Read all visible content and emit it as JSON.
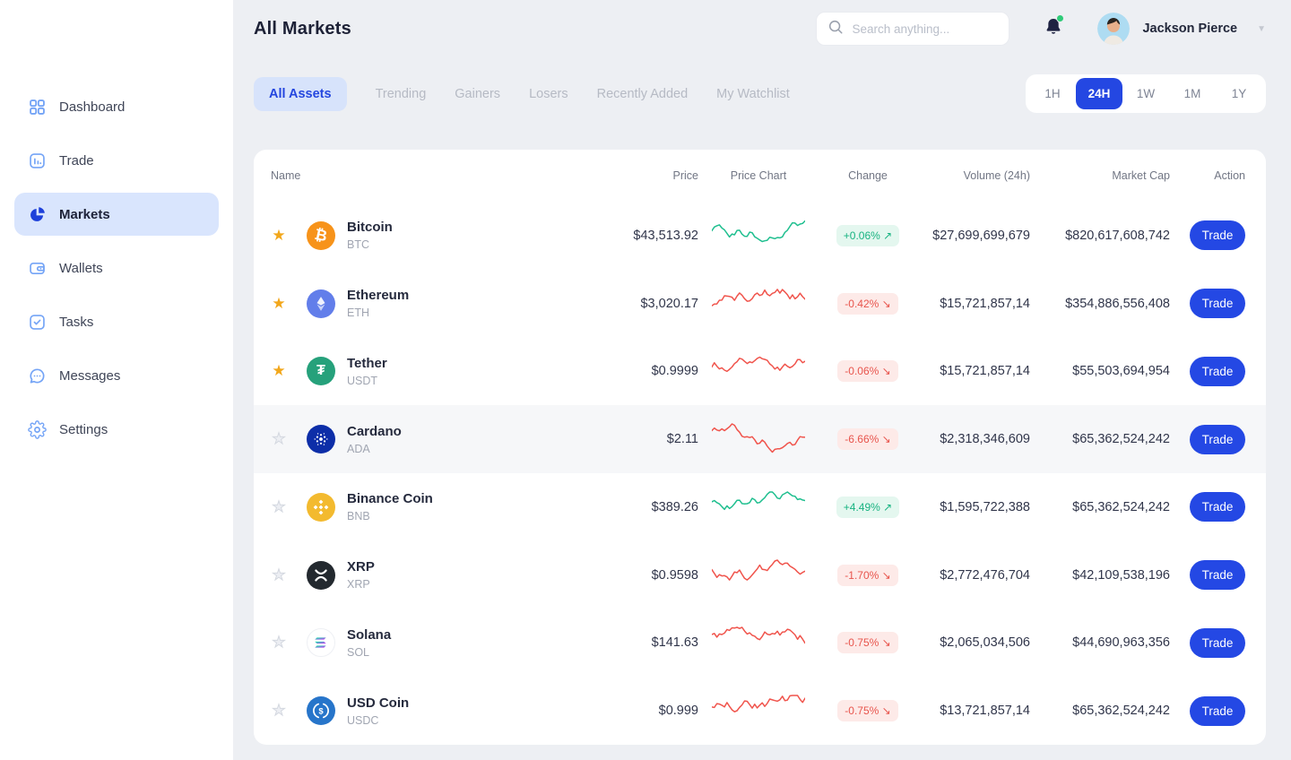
{
  "header": {
    "title": "All Markets",
    "search_placeholder": "Search anything...",
    "user_name": "Jackson Pierce"
  },
  "sidebar": {
    "items": [
      {
        "label": "Dashboard",
        "icon": "dashboard-grid-icon",
        "active": false
      },
      {
        "label": "Trade",
        "icon": "trade-chart-icon",
        "active": false
      },
      {
        "label": "Markets",
        "icon": "markets-pie-icon",
        "active": true
      },
      {
        "label": "Wallets",
        "icon": "wallet-icon",
        "active": false
      },
      {
        "label": "Tasks",
        "icon": "tasks-check-icon",
        "active": false
      },
      {
        "label": "Messages",
        "icon": "messages-chat-icon",
        "active": false
      },
      {
        "label": "Settings",
        "icon": "settings-gear-icon",
        "active": false
      }
    ]
  },
  "tabs": [
    {
      "label": "All Assets",
      "active": true
    },
    {
      "label": "Trending",
      "active": false
    },
    {
      "label": "Gainers",
      "active": false
    },
    {
      "label": "Losers",
      "active": false
    },
    {
      "label": "Recently Added",
      "active": false
    },
    {
      "label": "My Watchlist",
      "active": false
    }
  ],
  "time_ranges": [
    {
      "label": "1H",
      "active": false
    },
    {
      "label": "24H",
      "active": true
    },
    {
      "label": "1W",
      "active": false
    },
    {
      "label": "1M",
      "active": false
    },
    {
      "label": "1Y",
      "active": false
    }
  ],
  "table": {
    "columns": [
      "Name",
      "Price",
      "Price Chart",
      "Change",
      "Volume (24h)",
      "Market Cap",
      "Action"
    ],
    "rows": [
      {
        "name": "Bitcoin",
        "symbol": "BTC",
        "starred": true,
        "highlighted": false,
        "price": "$43,513.92",
        "trend": "up",
        "change": "+0.06%",
        "volume": "$27,699,699,679",
        "market_cap": "$820,617,608,742",
        "action": "Trade",
        "icon": "btc-icon",
        "icon_bg": "#f7931a"
      },
      {
        "name": "Ethereum",
        "symbol": "ETH",
        "starred": true,
        "highlighted": false,
        "price": "$3,020.17",
        "trend": "down",
        "change": "-0.42%",
        "volume": "$15,721,857,14",
        "market_cap": "$354,886,556,408",
        "action": "Trade",
        "icon": "eth-icon",
        "icon_bg": "#627eea"
      },
      {
        "name": "Tether",
        "symbol": "USDT",
        "starred": true,
        "highlighted": false,
        "price": "$0.9999",
        "trend": "down",
        "change": "-0.06%",
        "volume": "$15,721,857,14",
        "market_cap": "$55,503,694,954",
        "action": "Trade",
        "icon": "usdt-icon",
        "icon_bg": "#26a17b"
      },
      {
        "name": "Cardano",
        "symbol": "ADA",
        "starred": false,
        "highlighted": true,
        "price": "$2.11",
        "trend": "down",
        "change": "-6.66%",
        "volume": "$2,318,346,609",
        "market_cap": "$65,362,524,242",
        "action": "Trade",
        "icon": "ada-icon",
        "icon_bg": "#0d2ea8"
      },
      {
        "name": "Binance Coin",
        "symbol": "BNB",
        "starred": false,
        "highlighted": false,
        "price": "$389.26",
        "trend": "up",
        "change": "+4.49%",
        "volume": "$1,595,722,388",
        "market_cap": "$65,362,524,242",
        "action": "Trade",
        "icon": "bnb-icon",
        "icon_bg": "#f3ba2f"
      },
      {
        "name": "XRP",
        "symbol": "XRP",
        "starred": false,
        "highlighted": false,
        "price": "$0.9598",
        "trend": "down",
        "change": "-1.70%",
        "volume": "$2,772,476,704",
        "market_cap": "$42,109,538,196",
        "action": "Trade",
        "icon": "xrp-icon",
        "icon_bg": "#23292f"
      },
      {
        "name": "Solana",
        "symbol": "SOL",
        "starred": false,
        "highlighted": false,
        "price": "$141.63",
        "trend": "down",
        "change": "-0.75%",
        "volume": "$2,065,034,506",
        "market_cap": "$44,690,963,356",
        "action": "Trade",
        "icon": "sol-icon",
        "icon_bg": "#ffffff"
      },
      {
        "name": "USD Coin",
        "symbol": "USDC",
        "starred": false,
        "highlighted": false,
        "price": "$0.999",
        "trend": "down",
        "change": "-0.75%",
        "volume": "$13,721,857,14",
        "market_cap": "$65,362,524,242",
        "action": "Trade",
        "icon": "usdc-icon",
        "icon_bg": "#2775ca"
      }
    ]
  },
  "colors": {
    "accent": "#2447e2",
    "positive": "#18b381",
    "positive_bg": "#e4f7ef",
    "negative": "#e8554d",
    "negative_bg": "#fdeae8",
    "star_gold": "#f2a71b",
    "spark_up": "#1fbf8f",
    "spark_down": "#f0544c"
  },
  "glyphs": {
    "change_up_arrow": "↗",
    "change_down_arrow": "↘",
    "caret_down": "▼",
    "star": "★"
  }
}
